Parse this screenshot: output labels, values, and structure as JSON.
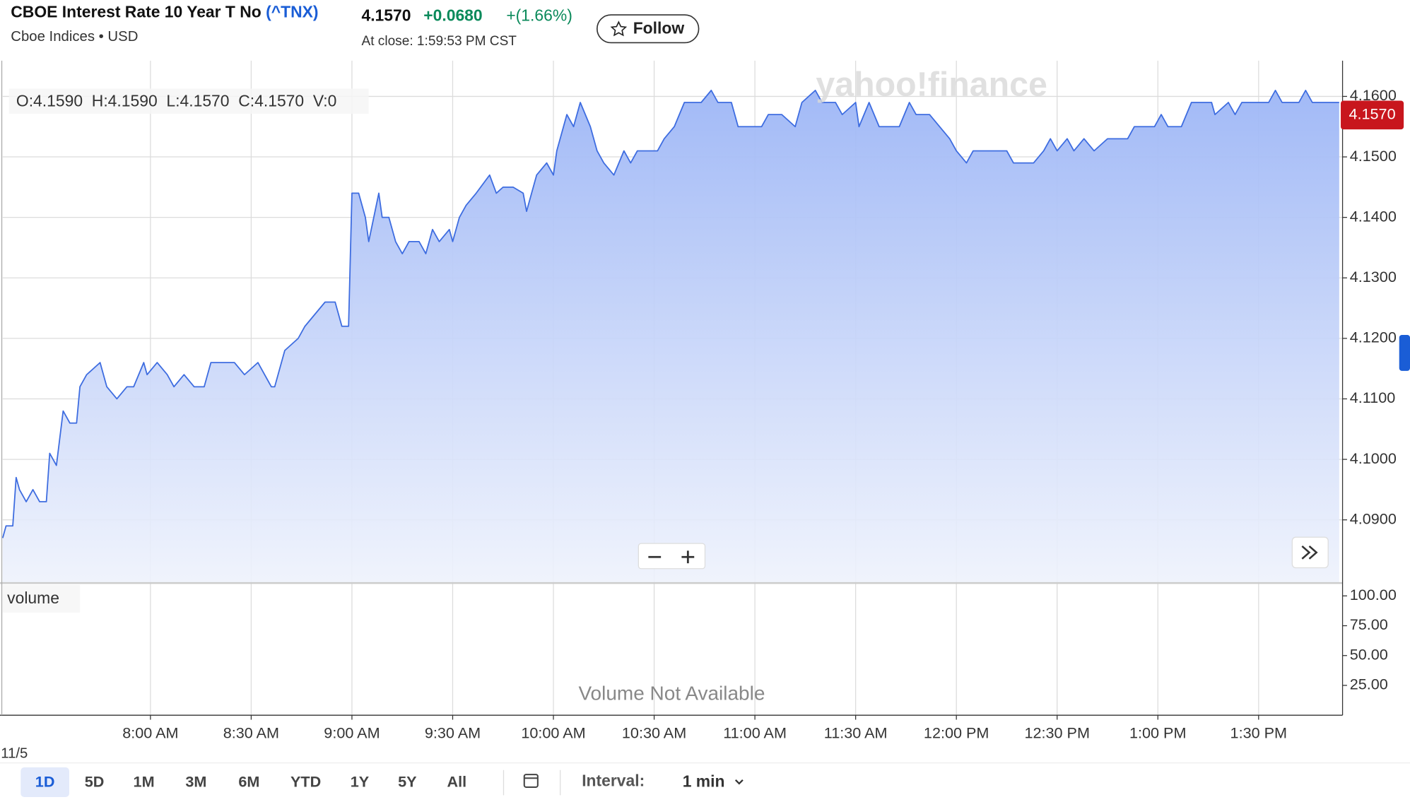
{
  "header": {
    "title": "CBOE Interest Rate 10 Year T No",
    "symbol": "(^TNX)",
    "exchange": "Cboe Indices • USD",
    "price": "4.1570",
    "change": "+0.0680",
    "change_pct": "+(1.66%)",
    "close_time": "At close: 1:59:53 PM CST",
    "follow": "Follow"
  },
  "chart_data": {
    "type": "line",
    "ohlcv": "O:4.1590  H:4.1590  L:4.1570  C:4.1570  V:0",
    "watermark": "yahoo!finance",
    "last_price": "4.1570",
    "date_label": "11/5",
    "x": [
      "7:16 AM",
      "7:17 AM",
      "7:19 AM",
      "7:20 AM",
      "7:21 AM",
      "7:23 AM",
      "7:25 AM",
      "7:27 AM",
      "7:29 AM",
      "7:30 AM",
      "7:32 AM",
      "7:34 AM",
      "7:36 AM",
      "7:38 AM",
      "7:39 AM",
      "7:41 AM",
      "7:45 AM",
      "7:47 AM",
      "7:50 AM",
      "7:53 AM",
      "7:55 AM",
      "7:58 AM",
      "7:59 AM",
      "8:02 AM",
      "8:05 AM",
      "8:07 AM",
      "8:10 AM",
      "8:13 AM",
      "8:16 AM",
      "8:18 AM",
      "8:21 AM",
      "8:25 AM",
      "8:28 AM",
      "8:32 AM",
      "8:36 AM",
      "8:37 AM",
      "8:40 AM",
      "8:44 AM",
      "8:46 AM",
      "8:49 AM",
      "8:52 AM",
      "8:55 AM",
      "8:57 AM",
      "8:59 AM",
      "9:00 AM",
      "9:02 AM",
      "9:04 AM",
      "9:05 AM",
      "9:08 AM",
      "9:09 AM",
      "9:11 AM",
      "9:13 AM",
      "9:15 AM",
      "9:17 AM",
      "9:20 AM",
      "9:22 AM",
      "9:24 AM",
      "9:26 AM",
      "9:29 AM",
      "9:30 AM",
      "9:32 AM",
      "9:34 AM",
      "9:37 AM",
      "9:41 AM",
      "9:43 AM",
      "9:45 AM",
      "9:48 AM",
      "9:51 AM",
      "9:52 AM",
      "9:55 AM",
      "9:58 AM",
      "10:00 AM",
      "10:01 AM",
      "10:04 AM",
      "10:06 AM",
      "10:08 AM",
      "10:11 AM",
      "10:13 AM",
      "10:15 AM",
      "10:18 AM",
      "10:21 AM",
      "10:23 AM",
      "10:25 AM",
      "10:31 AM",
      "10:33 AM",
      "10:36 AM",
      "10:39 AM",
      "10:44 AM",
      "10:47 AM",
      "10:49 AM",
      "10:53 AM",
      "10:55 AM",
      "11:02 AM",
      "11:04 AM",
      "11:08 AM",
      "11:12 AM",
      "11:14 AM",
      "11:18 AM",
      "11:20 AM",
      "11:24 AM",
      "11:26 AM",
      "11:30 AM",
      "11:31 AM",
      "11:34 AM",
      "11:37 AM",
      "11:40 AM",
      "11:43 AM",
      "11:46 AM",
      "11:48 AM",
      "11:52 AM",
      "11:55 AM",
      "11:58 AM",
      "12:00 PM",
      "12:03 PM",
      "12:05 PM",
      "12:07 PM",
      "12:15 PM",
      "12:17 PM",
      "12:23 PM",
      "12:26 PM",
      "12:28 PM",
      "12:30 PM",
      "12:33 PM",
      "12:35 PM",
      "12:38 PM",
      "12:41 PM",
      "12:45 PM",
      "12:51 PM",
      "12:53 PM",
      "12:59 PM",
      "1:01 PM",
      "1:03 PM",
      "1:07 PM",
      "1:10 PM",
      "1:16 PM",
      "1:17 PM",
      "1:21 PM",
      "1:23 PM",
      "1:25 PM",
      "1:33 PM",
      "1:35 PM",
      "1:37 PM",
      "1:42 PM",
      "1:44 PM",
      "1:46 PM",
      "1:54 PM"
    ],
    "series": [
      {
        "color": "#3d6ce0",
        "values": [
          4.087,
          4.089,
          4.089,
          4.097,
          4.095,
          4.093,
          4.095,
          4.093,
          4.093,
          4.101,
          4.099,
          4.108,
          4.106,
          4.106,
          4.112,
          4.114,
          4.116,
          4.112,
          4.11,
          4.112,
          4.112,
          4.116,
          4.114,
          4.116,
          4.114,
          4.112,
          4.114,
          4.112,
          4.112,
          4.116,
          4.116,
          4.116,
          4.114,
          4.116,
          4.112,
          4.112,
          4.118,
          4.12,
          4.122,
          4.124,
          4.126,
          4.126,
          4.122,
          4.122,
          4.144,
          4.144,
          4.14,
          4.136,
          4.144,
          4.14,
          4.14,
          4.136,
          4.134,
          4.136,
          4.136,
          4.134,
          4.138,
          4.136,
          4.138,
          4.136,
          4.14,
          4.142,
          4.144,
          4.147,
          4.144,
          4.145,
          4.145,
          4.144,
          4.141,
          4.147,
          4.149,
          4.147,
          4.151,
          4.157,
          4.155,
          4.159,
          4.155,
          4.151,
          4.149,
          4.147,
          4.151,
          4.149,
          4.151,
          4.151,
          4.153,
          4.155,
          4.159,
          4.159,
          4.161,
          4.159,
          4.159,
          4.155,
          4.155,
          4.157,
          4.157,
          4.155,
          4.159,
          4.161,
          4.159,
          4.159,
          4.157,
          4.159,
          4.155,
          4.159,
          4.155,
          4.155,
          4.155,
          4.159,
          4.157,
          4.157,
          4.155,
          4.153,
          4.151,
          4.149,
          4.151,
          4.151,
          4.151,
          4.149,
          4.149,
          4.151,
          4.153,
          4.151,
          4.153,
          4.151,
          4.153,
          4.151,
          4.153,
          4.153,
          4.155,
          4.155,
          4.157,
          4.155,
          4.155,
          4.159,
          4.159,
          4.157,
          4.159,
          4.157,
          4.159,
          4.159,
          4.161,
          4.159,
          4.159,
          4.161,
          4.159,
          4.159
        ]
      }
    ],
    "xlim": [
      "7:16 AM",
      "1:55 PM"
    ],
    "xticks": [
      "8:00 AM",
      "8:30 AM",
      "9:00 AM",
      "9:30 AM",
      "10:00 AM",
      "10:30 AM",
      "11:00 AM",
      "11:30 AM",
      "12:00 PM",
      "12:30 PM",
      "1:00 PM",
      "1:30 PM"
    ],
    "ylim": [
      4.0797,
      4.1659
    ],
    "yticks": [
      {
        "value": 4.09,
        "label": "4.0900"
      },
      {
        "value": 4.1,
        "label": "4.1000"
      },
      {
        "value": 4.11,
        "label": "4.1100"
      },
      {
        "value": 4.12,
        "label": "4.1200"
      },
      {
        "value": 4.13,
        "label": "4.1300"
      },
      {
        "value": 4.14,
        "label": "4.1400"
      },
      {
        "value": 4.15,
        "label": "4.1500"
      },
      {
        "value": 4.16,
        "label": "4.1600"
      }
    ],
    "grid": true,
    "volume_panel": {
      "label": "volume",
      "note": "Volume Not Available",
      "ylim": [
        0,
        110
      ],
      "yticks": [
        {
          "value": 25,
          "label": "25.00"
        },
        {
          "value": 50,
          "label": "50.00"
        },
        {
          "value": 75,
          "label": "75.00"
        },
        {
          "value": 100,
          "label": "100.00"
        }
      ]
    }
  },
  "toolbar": {
    "ranges": [
      "1D",
      "5D",
      "1M",
      "3M",
      "6M",
      "YTD",
      "1Y",
      "5Y",
      "All"
    ],
    "interval_label": "Interval:",
    "interval": "1 min"
  }
}
